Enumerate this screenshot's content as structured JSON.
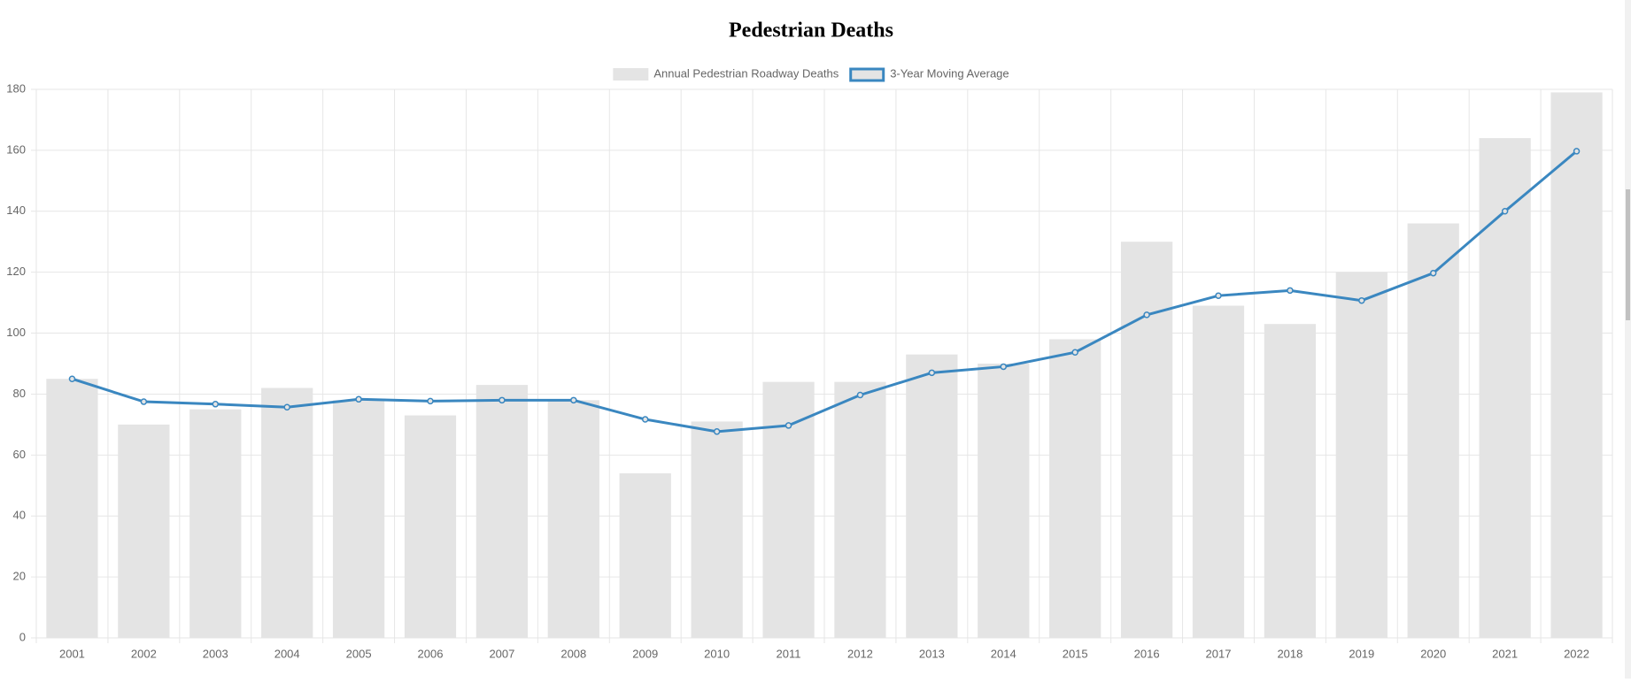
{
  "chart_data": {
    "type": "bar",
    "title": "Pedestrian Deaths",
    "categories": [
      "2001",
      "2002",
      "2003",
      "2004",
      "2005",
      "2006",
      "2007",
      "2008",
      "2009",
      "2010",
      "2011",
      "2012",
      "2013",
      "2014",
      "2015",
      "2016",
      "2017",
      "2018",
      "2019",
      "2020",
      "2021",
      "2022"
    ],
    "series": [
      {
        "name": "Annual Pedestrian Roadway Deaths",
        "type": "bar",
        "color": "#e4e4e4",
        "values": [
          85,
          70,
          75,
          82,
          78,
          73,
          83,
          78,
          54,
          71,
          84,
          84,
          93,
          90,
          98,
          130,
          109,
          103,
          120,
          136,
          164,
          179
        ]
      },
      {
        "name": "3-Year Moving Average",
        "type": "line",
        "color": "#3a87c0",
        "values": [
          85,
          77.5,
          76.7,
          75.7,
          78.3,
          77.7,
          78,
          78,
          71.7,
          67.7,
          69.7,
          79.7,
          87,
          89,
          93.7,
          106,
          112.3,
          114,
          110.7,
          119.7,
          140,
          159.7
        ]
      }
    ],
    "ylim": [
      0,
      180
    ],
    "yticks": [
      0,
      20,
      40,
      60,
      80,
      100,
      120,
      140,
      160,
      180
    ],
    "grid": true,
    "legend": "top"
  }
}
